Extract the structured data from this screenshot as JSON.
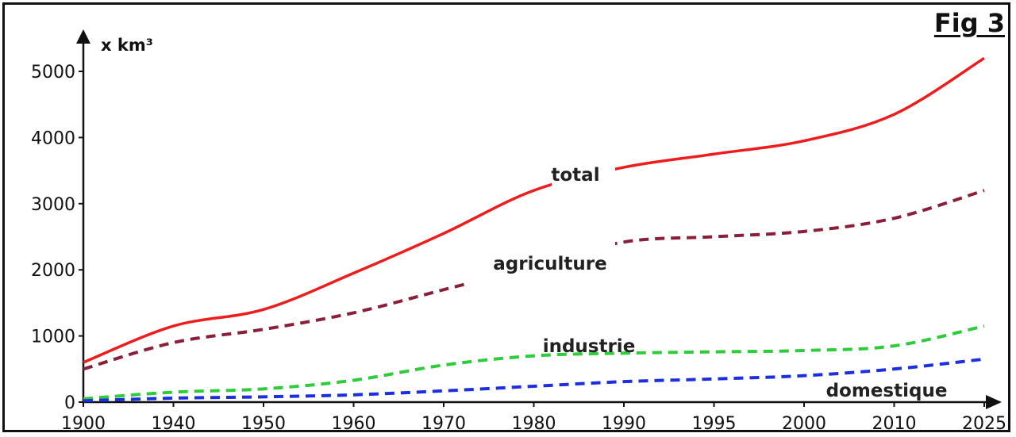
{
  "figure_label": "Fig 3",
  "chart_data": {
    "type": "line",
    "title": "",
    "ylabel": "x km³",
    "xlabel": "",
    "x_ticks": [
      "1900",
      "1940",
      "1950",
      "1960",
      "1970",
      "1980",
      "1990",
      "1995",
      "2000",
      "2010",
      "2025"
    ],
    "y_ticks": [
      "0",
      "1000",
      "2000",
      "3000",
      "4000",
      "5000"
    ],
    "ylim": [
      0,
      5500
    ],
    "grid": false,
    "series": [
      {
        "name": "total",
        "color": "#ee1c1c",
        "style": "solid",
        "values": [
          600,
          1150,
          1400,
          1950,
          2550,
          3200,
          3550,
          3750,
          3950,
          4350,
          5200
        ]
      },
      {
        "name": "agriculture",
        "color": "#8a1f3a",
        "style": "dashed",
        "values": [
          500,
          900,
          1100,
          1350,
          1700,
          2050,
          2420,
          2500,
          2580,
          2780,
          3200
        ]
      },
      {
        "name": "industrie",
        "color": "#2ecc3a",
        "style": "dashed",
        "values": [
          50,
          150,
          200,
          330,
          560,
          700,
          740,
          760,
          780,
          850,
          1150
        ]
      },
      {
        "name": "domestique",
        "color": "#1b2fe0",
        "style": "dashed",
        "values": [
          20,
          60,
          80,
          110,
          170,
          240,
          310,
          350,
          400,
          500,
          650
        ]
      }
    ]
  }
}
